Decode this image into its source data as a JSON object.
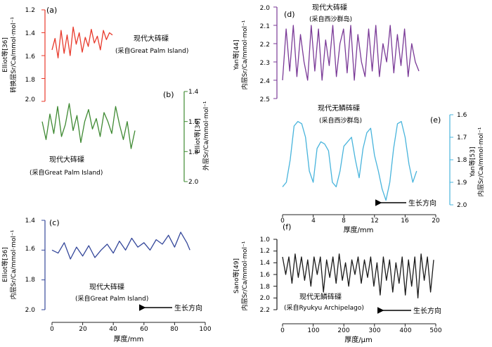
{
  "colors": {
    "a": "#e8392b",
    "b": "#3f8a33",
    "c": "#34479a",
    "d": "#7a3a97",
    "e": "#48b4dc",
    "f": "#1a1a1a",
    "axis": "#222222"
  },
  "panels": {
    "a": {
      "letter": "(a)",
      "ylabel": [
        "Elliot等[36]",
        "转换层Sr/Ca/mmol·mol⁻¹"
      ],
      "ticks": [
        "1.2",
        "1.4",
        "1.6",
        "1.8",
        "2.0"
      ],
      "caption": [
        "现代大砗磲",
        "(采自Great Palm Island)"
      ]
    },
    "b": {
      "letter": "(b)",
      "ylabel": [
        "Elliot等[36]",
        "外层Sr/Ca/mmol·mol⁻¹"
      ],
      "ticks": [
        "1.4",
        "1.6",
        "1.8",
        "2.0"
      ],
      "caption": [
        "现代大砗磲",
        "(采自Great Palm Island)"
      ]
    },
    "c": {
      "letter": "(c)",
      "ylabel": [
        "Elliot等[36]",
        "内层Sr/Ca/mmol·mol⁻¹"
      ],
      "ticks": [
        "1.4",
        "1.6",
        "1.8",
        "2.0"
      ],
      "xticks": [
        "0",
        "20",
        "40",
        "60",
        "80",
        "100"
      ],
      "xlabel": "厚度/mm",
      "caption": [
        "现代大砗磲",
        "(采自Great Palm Island)"
      ],
      "arrow": "生长方向"
    },
    "d": {
      "letter": "(d)",
      "ylabel": [
        "Yan等[44]",
        "内层Sr/Ca/mmol·mol⁻¹"
      ],
      "ticks": [
        "2.0",
        "2.1",
        "2.2",
        "2.3",
        "2.4",
        "2.5"
      ],
      "caption": [
        "现代大砗磲",
        "(采自西沙群岛)"
      ]
    },
    "e": {
      "letter": "(e)",
      "ylabel": [
        "Yan等[53]",
        "内层Sr/Ca/mmol·mol⁻¹"
      ],
      "ticks": [
        "1.6",
        "1.7",
        "1.8",
        "1.9",
        "2.0"
      ],
      "xticks": [
        "0",
        "4",
        "8",
        "12",
        "16",
        "20"
      ],
      "xlabel": "厚度/mm",
      "caption": [
        "现代无鳞砗磲",
        "(采自西沙群岛)"
      ],
      "arrow": "生长方向"
    },
    "f": {
      "letter": "(f)",
      "ylabel": [
        "Sano等[49]",
        "内层Sr/Ca/mmol·mol⁻¹"
      ],
      "ticks": [
        "1.0",
        "1.2",
        "1.4",
        "1.6",
        "1.8",
        "2.0",
        "2.2"
      ],
      "xticks": [
        "0",
        "100",
        "200",
        "300",
        "400",
        "500"
      ],
      "xlabel": "厚度/μm",
      "caption": [
        "现代无鳞砗磲",
        "(采自Ryukyu Archipelago)"
      ],
      "arrow": "生长方向"
    }
  },
  "chart_data": [
    {
      "panel": "a",
      "type": "line",
      "ylim": [
        2.0,
        1.2
      ],
      "xlim": [
        0,
        100
      ],
      "x": [
        0,
        2,
        4,
        6,
        8,
        10,
        12,
        14,
        16,
        18,
        20,
        22,
        24,
        26,
        28,
        30,
        32,
        34,
        36,
        38,
        40
      ],
      "values": [
        1.55,
        1.45,
        1.62,
        1.38,
        1.58,
        1.42,
        1.6,
        1.35,
        1.5,
        1.4,
        1.57,
        1.44,
        1.52,
        1.37,
        1.49,
        1.43,
        1.55,
        1.38,
        1.46,
        1.4,
        1.42
      ]
    },
    {
      "panel": "b",
      "type": "line",
      "ylim": [
        2.0,
        1.4
      ],
      "xlim": [
        0,
        100
      ],
      "x": [
        0,
        4,
        8,
        12,
        16,
        20,
        24,
        28,
        32,
        36,
        40,
        44,
        48,
        52,
        56,
        60,
        64,
        68,
        72,
        76,
        80,
        84,
        88,
        92,
        96
      ],
      "values": [
        1.6,
        1.72,
        1.55,
        1.68,
        1.5,
        1.7,
        1.62,
        1.48,
        1.66,
        1.56,
        1.74,
        1.6,
        1.52,
        1.65,
        1.58,
        1.7,
        1.54,
        1.6,
        1.68,
        1.5,
        1.62,
        1.72,
        1.6,
        1.78,
        1.66
      ]
    },
    {
      "panel": "c",
      "type": "line",
      "ylim": [
        2.0,
        1.4
      ],
      "xlim": [
        0,
        100
      ],
      "x": [
        0,
        4,
        8,
        12,
        16,
        20,
        24,
        28,
        32,
        36,
        40,
        44,
        48,
        52,
        56,
        60,
        64,
        68,
        72,
        76,
        80,
        84,
        88,
        90
      ],
      "values": [
        1.6,
        1.62,
        1.55,
        1.66,
        1.58,
        1.64,
        1.57,
        1.65,
        1.6,
        1.56,
        1.62,
        1.54,
        1.6,
        1.52,
        1.58,
        1.55,
        1.6,
        1.53,
        1.56,
        1.5,
        1.58,
        1.48,
        1.55,
        1.6
      ]
    },
    {
      "panel": "d",
      "type": "line",
      "ylim": [
        2.5,
        2.0
      ],
      "xlim": [
        0,
        20
      ],
      "x": [
        0,
        0.5,
        1,
        1.5,
        2,
        2.5,
        3,
        3.5,
        4,
        4.5,
        5,
        5.5,
        6,
        6.5,
        7,
        7.5,
        8,
        8.5,
        9,
        9.5,
        10,
        10.5,
        11,
        11.5,
        12,
        12.5,
        13,
        13.5,
        14,
        14.5,
        15,
        15.5,
        16,
        16.5,
        17,
        17.5,
        18,
        18.5,
        19
      ],
      "values": [
        2.4,
        2.12,
        2.35,
        2.1,
        2.38,
        2.15,
        2.3,
        2.4,
        2.1,
        2.35,
        2.12,
        2.4,
        2.18,
        2.32,
        2.1,
        2.38,
        2.2,
        2.12,
        2.36,
        2.1,
        2.4,
        2.15,
        2.3,
        2.38,
        2.12,
        2.35,
        2.1,
        2.38,
        2.2,
        2.3,
        2.1,
        2.36,
        2.15,
        2.32,
        2.12,
        2.38,
        2.2,
        2.3,
        2.35
      ]
    },
    {
      "panel": "e",
      "type": "line",
      "ylim": [
        2.0,
        1.6
      ],
      "xlim": [
        0,
        20
      ],
      "x": [
        0,
        0.5,
        1,
        1.5,
        2,
        2.5,
        3,
        3.5,
        4,
        4.5,
        5,
        5.5,
        6,
        6.5,
        7,
        7.5,
        8,
        8.5,
        9,
        9.5,
        10,
        10.5,
        11,
        11.5,
        12,
        12.5,
        13,
        13.5,
        14,
        14.5,
        15,
        15.5,
        16,
        16.5,
        17,
        17.5
      ],
      "values": [
        1.92,
        1.9,
        1.8,
        1.65,
        1.63,
        1.64,
        1.7,
        1.85,
        1.9,
        1.75,
        1.72,
        1.73,
        1.76,
        1.9,
        1.92,
        1.85,
        1.74,
        1.72,
        1.7,
        1.8,
        1.88,
        1.75,
        1.68,
        1.66,
        1.78,
        1.85,
        1.93,
        1.98,
        1.9,
        1.75,
        1.64,
        1.63,
        1.7,
        1.82,
        1.9,
        1.85
      ]
    },
    {
      "panel": "f",
      "type": "line",
      "ylim": [
        2.2,
        1.0
      ],
      "xlim": [
        0,
        500
      ],
      "x": [
        0,
        10,
        20,
        30,
        40,
        50,
        60,
        70,
        80,
        90,
        100,
        110,
        120,
        130,
        140,
        150,
        160,
        170,
        180,
        190,
        200,
        210,
        220,
        230,
        240,
        250,
        260,
        270,
        280,
        290,
        300,
        310,
        320,
        330,
        340,
        350,
        360,
        370,
        380,
        390,
        400,
        410,
        420,
        430,
        440,
        450,
        460,
        470,
        480
      ],
      "values": [
        1.3,
        1.6,
        1.3,
        1.75,
        1.25,
        1.65,
        1.3,
        1.7,
        1.35,
        1.8,
        1.3,
        1.6,
        1.3,
        1.9,
        1.35,
        1.65,
        1.3,
        1.75,
        1.25,
        1.7,
        1.4,
        1.8,
        1.35,
        1.6,
        1.3,
        1.75,
        1.35,
        1.65,
        1.3,
        1.8,
        1.4,
        1.95,
        1.3,
        1.7,
        1.35,
        1.9,
        1.4,
        1.75,
        1.3,
        1.95,
        1.35,
        1.8,
        1.3,
        2.0,
        1.25,
        1.7,
        1.3,
        1.9,
        1.35
      ]
    }
  ]
}
